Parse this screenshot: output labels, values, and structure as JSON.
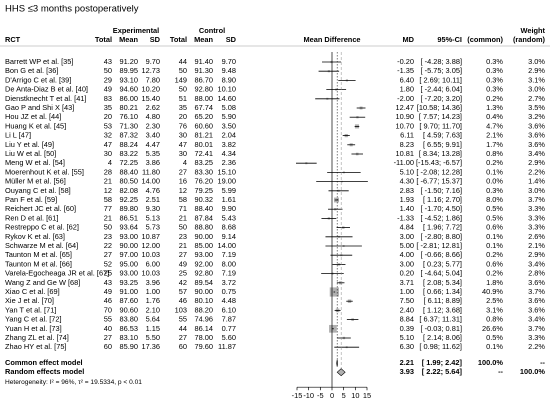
{
  "chart_data": {
    "type": "forest",
    "title": "HHS ≤3 months postoperatively",
    "columns": {
      "rct": "RCT",
      "experimental": "Experimental",
      "control": "Control",
      "sub": [
        "Total",
        "Mean",
        "SD"
      ],
      "mean_difference": "Mean Difference",
      "md": "MD",
      "ci": "95%-CI",
      "weight": "Weight",
      "weight_common": "(common)",
      "weight_random": "(random)"
    },
    "xlim": [
      -15,
      15
    ],
    "xticks": [
      -15,
      -10,
      -5,
      0,
      5,
      10,
      15
    ],
    "square_color": "#b0b0b0",
    "studies": [
      {
        "name": "Barrett WP et al. [35]",
        "exp": [
          "43",
          "91.20",
          "9.70"
        ],
        "ctrl": [
          "44",
          "91.40",
          "9.70"
        ],
        "md": -0.2,
        "md_label": "-0.20",
        "ci": [
          -4.28,
          3.88
        ],
        "ci_label": "[ -4.28; 3.88]",
        "weight_common": 0.3,
        "weight_common_label": "0.3%",
        "weight_random": 3.0,
        "weight_random_label": "3.0%"
      },
      {
        "name": "Bon G et al. [36]",
        "exp": [
          "50",
          "89.95",
          "12.73"
        ],
        "ctrl": [
          "50",
          "91.30",
          "9.48"
        ],
        "md": -1.35,
        "md_label": "-1.35",
        "ci": [
          -5.75,
          3.05
        ],
        "ci_label": "[ -5.75; 3.05]",
        "weight_common": 0.3,
        "weight_common_label": "0.3%",
        "weight_random": 2.9,
        "weight_random_label": "2.9%"
      },
      {
        "name": "D'Arrigo C et al. [39]",
        "exp": [
          "29",
          "93.10",
          "7.80"
        ],
        "ctrl": [
          "149",
          "86.70",
          "8.90"
        ],
        "md": 6.4,
        "md_label": "6.40",
        "ci": [
          2.69,
          10.11
        ],
        "ci_label": "[ 2.69; 10.11]",
        "weight_common": 0.3,
        "weight_common_label": "0.3%",
        "weight_random": 3.1,
        "weight_random_label": "3.1%"
      },
      {
        "name": "De Anta-Diaz B et al. [40]",
        "exp": [
          "49",
          "94.60",
          "10.20"
        ],
        "ctrl": [
          "50",
          "92.80",
          "10.10"
        ],
        "md": 1.8,
        "md_label": "1.80",
        "ci": [
          -2.44,
          6.04
        ],
        "ci_label": "[ -2.44; 6.04]",
        "weight_common": 0.3,
        "weight_common_label": "0.3%",
        "weight_random": 3.0,
        "weight_random_label": "3.0%"
      },
      {
        "name": "Dienstknecht T et al. [41]",
        "exp": [
          "83",
          "86.00",
          "15.40"
        ],
        "ctrl": [
          "51",
          "88.00",
          "14.60"
        ],
        "md": -2.0,
        "md_label": "-2.00",
        "ci": [
          -7.2,
          3.2
        ],
        "ci_label": "[ -7.20; 3.20]",
        "weight_common": 0.2,
        "weight_common_label": "0.2%",
        "weight_random": 2.7,
        "weight_random_label": "2.7%"
      },
      {
        "name": "Gao P and Shi X [43]",
        "exp": [
          "35",
          "80.21",
          "2.62"
        ],
        "ctrl": [
          "35",
          "67.74",
          "5.08"
        ],
        "md": 12.47,
        "md_label": "12.47",
        "ci": [
          10.58,
          14.36
        ],
        "ci_label": "[10.58; 14.36]",
        "weight_common": 1.3,
        "weight_common_label": "1.3%",
        "weight_random": 3.5,
        "weight_random_label": "3.5%"
      },
      {
        "name": "Hou JZ et al. [44]",
        "exp": [
          "20",
          "76.10",
          "4.80"
        ],
        "ctrl": [
          "20",
          "65.20",
          "5.90"
        ],
        "md": 10.9,
        "md_label": "10.90",
        "ci": [
          7.57,
          14.23
        ],
        "ci_label": "[ 7.57; 14.23]",
        "weight_common": 0.4,
        "weight_common_label": "0.4%",
        "weight_random": 3.2,
        "weight_random_label": "3.2%"
      },
      {
        "name": "Huang K et al. [45]",
        "exp": [
          "53",
          "71.30",
          "2.30"
        ],
        "ctrl": [
          "76",
          "60.60",
          "3.50"
        ],
        "md": 10.7,
        "md_label": "10.70",
        "ci": [
          9.7,
          11.7
        ],
        "ci_label": "[ 9.70; 11.70]",
        "weight_common": 4.7,
        "weight_common_label": "4.7%",
        "weight_random": 3.6,
        "weight_random_label": "3.6%"
      },
      {
        "name": "Li L [47]",
        "exp": [
          "32",
          "87.32",
          "3.40"
        ],
        "ctrl": [
          "30",
          "81.21",
          "2.04"
        ],
        "md": 6.11,
        "md_label": "6.11",
        "ci": [
          4.59,
          7.63
        ],
        "ci_label": "[ 4.59; 7.63]",
        "weight_common": 2.1,
        "weight_common_label": "2.1%",
        "weight_random": 3.6,
        "weight_random_label": "3.6%"
      },
      {
        "name": "Liu Y et al. [49]",
        "exp": [
          "47",
          "88.24",
          "4.47"
        ],
        "ctrl": [
          "47",
          "80.01",
          "3.82"
        ],
        "md": 8.23,
        "md_label": "8.23",
        "ci": [
          6.55,
          9.91
        ],
        "ci_label": "[ 6.55; 9.91]",
        "weight_common": 1.7,
        "weight_common_label": "1.7%",
        "weight_random": 3.6,
        "weight_random_label": "3.6%"
      },
      {
        "name": "Liu W et al. [50]",
        "exp": [
          "30",
          "83.22",
          "5.35"
        ],
        "ctrl": [
          "30",
          "72.41",
          "4.34"
        ],
        "md": 10.81,
        "md_label": "10.81",
        "ci": [
          8.34,
          13.28
        ],
        "ci_label": "[ 8.34; 13.28]",
        "weight_common": 0.8,
        "weight_common_label": "0.8%",
        "weight_random": 3.4,
        "weight_random_label": "3.4%"
      },
      {
        "name": "Meng W et al. [54]",
        "exp": [
          "4",
          "72.25",
          "3.86"
        ],
        "ctrl": [
          "4",
          "83.25",
          "2.36"
        ],
        "md": -11.0,
        "md_label": "-11.00",
        "ci": [
          -15.43,
          -6.57
        ],
        "ci_label": "[-15.43; -6.57]",
        "weight_common": 0.2,
        "weight_common_label": "0.2%",
        "weight_random": 2.9,
        "weight_random_label": "2.9%"
      },
      {
        "name": "Moerenhout K et al. [55]",
        "exp": [
          "28",
          "88.40",
          "11.80"
        ],
        "ctrl": [
          "27",
          "83.30",
          "15.10"
        ],
        "md": 5.1,
        "md_label": "5.10",
        "ci": [
          -2.08,
          12.28
        ],
        "ci_label": "[ -2.08; 12.28]",
        "weight_common": 0.1,
        "weight_common_label": "0.1%",
        "weight_random": 2.2,
        "weight_random_label": "2.2%"
      },
      {
        "name": "Müller M et al. [56]",
        "exp": [
          "21",
          "80.50",
          "14.00"
        ],
        "ctrl": [
          "16",
          "76.20",
          "19.00"
        ],
        "md": 4.3,
        "md_label": "4.30",
        "ci": [
          -6.77,
          15.37
        ],
        "ci_label": "[ -6.77; 15.37]",
        "weight_common": 0.0,
        "weight_common_label": "0.0%",
        "weight_random": 1.4,
        "weight_random_label": "1.4%"
      },
      {
        "name": "Ouyang C et al. [58]",
        "exp": [
          "12",
          "82.08",
          "4.76"
        ],
        "ctrl": [
          "12",
          "79.25",
          "5.99"
        ],
        "md": 2.83,
        "md_label": "2.83",
        "ci": [
          -1.5,
          7.16
        ],
        "ci_label": "[ -1.50; 7.16]",
        "weight_common": 0.3,
        "weight_common_label": "0.3%",
        "weight_random": 3.0,
        "weight_random_label": "3.0%"
      },
      {
        "name": "Pan F et al. [59]",
        "exp": [
          "58",
          "92.25",
          "2.51"
        ],
        "ctrl": [
          "58",
          "90.32",
          "1.61"
        ],
        "md": 1.93,
        "md_label": "1.93",
        "ci": [
          1.16,
          2.7
        ],
        "ci_label": "[ 1.16; 2.70]",
        "weight_common": 8.0,
        "weight_common_label": "8.0%",
        "weight_random": 3.7,
        "weight_random_label": "3.7%"
      },
      {
        "name": "Reichert JC et al. [60]",
        "exp": [
          "77",
          "89.80",
          "9.30"
        ],
        "ctrl": [
          "71",
          "88.40",
          "9.90"
        ],
        "md": 1.4,
        "md_label": "1.40",
        "ci": [
          -1.7,
          4.5
        ],
        "ci_label": "[ -1.70; 4.50]",
        "weight_common": 0.5,
        "weight_common_label": "0.5%",
        "weight_random": 3.3,
        "weight_random_label": "3.3%"
      },
      {
        "name": "Ren D et al. [61]",
        "exp": [
          "21",
          "86.51",
          "5.13"
        ],
        "ctrl": [
          "21",
          "87.84",
          "5.43"
        ],
        "md": -1.33,
        "md_label": "-1.33",
        "ci": [
          -4.52,
          1.86
        ],
        "ci_label": "[ -4.52; 1.86]",
        "weight_common": 0.5,
        "weight_common_label": "0.5%",
        "weight_random": 3.3,
        "weight_random_label": "3.3%"
      },
      {
        "name": "Restreppo C et al. [62]",
        "exp": [
          "50",
          "93.64",
          "5.73"
        ],
        "ctrl": [
          "50",
          "88.80",
          "8.68"
        ],
        "md": 4.84,
        "md_label": "4.84",
        "ci": [
          1.96,
          7.72
        ],
        "ci_label": "[ 1.96; 7.72]",
        "weight_common": 0.6,
        "weight_common_label": "0.6%",
        "weight_random": 3.3,
        "weight_random_label": "3.3%"
      },
      {
        "name": "Rykov K et al. [63]",
        "exp": [
          "23",
          "93.00",
          "10.87"
        ],
        "ctrl": [
          "23",
          "90.00",
          "9.14"
        ],
        "md": 3.0,
        "md_label": "3.00",
        "ci": [
          -2.8,
          8.8
        ],
        "ci_label": "[ -2.80; 8.80]",
        "weight_common": 0.1,
        "weight_common_label": "0.1%",
        "weight_random": 2.6,
        "weight_random_label": "2.6%"
      },
      {
        "name": "Schwarze M et al. [64]",
        "exp": [
          "22",
          "90.00",
          "12.00"
        ],
        "ctrl": [
          "21",
          "85.00",
          "14.00"
        ],
        "md": 5.0,
        "md_label": "5.00",
        "ci": [
          -2.81,
          12.81
        ],
        "ci_label": "[ -2.81; 12.81]",
        "weight_common": 0.1,
        "weight_common_label": "0.1%",
        "weight_random": 2.1,
        "weight_random_label": "2.1%"
      },
      {
        "name": "Taunton M et al. [65]",
        "exp": [
          "27",
          "97.00",
          "10.03"
        ],
        "ctrl": [
          "27",
          "93.00",
          "7.19"
        ],
        "md": 4.0,
        "md_label": "4.00",
        "ci": [
          -0.66,
          8.66
        ],
        "ci_label": "[ -0.66; 8.66]",
        "weight_common": 0.2,
        "weight_common_label": "0.2%",
        "weight_random": 2.9,
        "weight_random_label": "2.9%"
      },
      {
        "name": "Taunton M et al. [66]",
        "exp": [
          "52",
          "95.00",
          "6.00"
        ],
        "ctrl": [
          "49",
          "92.00",
          "8.00"
        ],
        "md": 3.0,
        "md_label": "3.00",
        "ci": [
          0.23,
          5.77
        ],
        "ci_label": "[ 0.23; 5.77]",
        "weight_common": 0.6,
        "weight_common_label": "0.6%",
        "weight_random": 3.4,
        "weight_random_label": "3.4%"
      },
      {
        "name": "Varela-Egocheaga JR et al. [67]",
        "exp": [
          "25",
          "93.00",
          "10.03"
        ],
        "ctrl": [
          "25",
          "92.80",
          "7.19"
        ],
        "md": 0.2,
        "md_label": "0.20",
        "ci": [
          -4.64,
          5.04
        ],
        "ci_label": "[ -4.64; 5.04]",
        "weight_common": 0.2,
        "weight_common_label": "0.2%",
        "weight_random": 2.8,
        "weight_random_label": "2.8%"
      },
      {
        "name": "Wang Z and Ge W [68]",
        "exp": [
          "43",
          "93.25",
          "3.96"
        ],
        "ctrl": [
          "42",
          "89.54",
          "3.72"
        ],
        "md": 3.71,
        "md_label": "3.71",
        "ci": [
          2.08,
          5.34
        ],
        "ci_label": "[ 2.08; 5.34]",
        "weight_common": 1.8,
        "weight_common_label": "1.8%",
        "weight_random": 3.6,
        "weight_random_label": "3.6%"
      },
      {
        "name": "Xiao C et al. [69]",
        "exp": [
          "49",
          "91.00",
          "1.00"
        ],
        "ctrl": [
          "57",
          "90.00",
          "0.75"
        ],
        "md": 1.0,
        "md_label": "1.00",
        "ci": [
          0.66,
          1.34
        ],
        "ci_label": "[ 0.66; 1.34]",
        "weight_common": 40.9,
        "weight_common_label": "40.9%",
        "weight_random": 3.7,
        "weight_random_label": "3.7%"
      },
      {
        "name": "Xie J et al. [70]",
        "exp": [
          "46",
          "87.60",
          "1.76"
        ],
        "ctrl": [
          "46",
          "80.10",
          "4.48"
        ],
        "md": 7.5,
        "md_label": "7.50",
        "ci": [
          6.11,
          8.89
        ],
        "ci_label": "[ 6.11; 8.89]",
        "weight_common": 2.5,
        "weight_common_label": "2.5%",
        "weight_random": 3.6,
        "weight_random_label": "3.6%"
      },
      {
        "name": "Yan T et al. [71]",
        "exp": [
          "70",
          "90.60",
          "2.10"
        ],
        "ctrl": [
          "103",
          "88.20",
          "6.10"
        ],
        "md": 2.4,
        "md_label": "2.40",
        "ci": [
          1.12,
          3.68
        ],
        "ci_label": "[ 1.12; 3.68]",
        "weight_common": 3.1,
        "weight_common_label": "3.1%",
        "weight_random": 3.6,
        "weight_random_label": "3.6%"
      },
      {
        "name": "Yang C et al. [72]",
        "exp": [
          "55",
          "83.80",
          "5.64"
        ],
        "ctrl": [
          "55",
          "74.96",
          "7.87"
        ],
        "md": 8.84,
        "md_label": "8.84",
        "ci": [
          6.37,
          11.31
        ],
        "ci_label": "[ 6.37; 11.31]",
        "weight_common": 0.8,
        "weight_common_label": "0.8%",
        "weight_random": 3.4,
        "weight_random_label": "3.4%"
      },
      {
        "name": "Yuan H et al. [73]",
        "exp": [
          "40",
          "86.53",
          "1.15"
        ],
        "ctrl": [
          "44",
          "86.14",
          "0.77"
        ],
        "md": 0.39,
        "md_label": "0.39",
        "ci": [
          -0.03,
          0.81
        ],
        "ci_label": "[ -0.03; 0.81]",
        "weight_common": 26.6,
        "weight_common_label": "26.6%",
        "weight_random": 3.7,
        "weight_random_label": "3.7%"
      },
      {
        "name": "Zhang ZL et al. [74]",
        "exp": [
          "27",
          "83.10",
          "5.50"
        ],
        "ctrl": [
          "27",
          "78.00",
          "5.60"
        ],
        "md": 5.1,
        "md_label": "5.10",
        "ci": [
          2.14,
          8.06
        ],
        "ci_label": "[ 2.14; 8.06]",
        "weight_common": 0.5,
        "weight_common_label": "0.5%",
        "weight_random": 3.3,
        "weight_random_label": "3.3%"
      },
      {
        "name": "Zhao HY et al. [75]",
        "exp": [
          "60",
          "85.90",
          "17.36"
        ],
        "ctrl": [
          "60",
          "79.60",
          "11.87"
        ],
        "md": 6.3,
        "md_label": "6.30",
        "ci": [
          0.98,
          11.62
        ],
        "ci_label": "[ 0.98; 11.62]",
        "weight_common": 0.1,
        "weight_common_label": "0.1%",
        "weight_random": 2.2,
        "weight_random_label": "2.2%"
      }
    ],
    "summaries": [
      {
        "name": "Common effect model",
        "md": 2.21,
        "md_label": "2.21",
        "ci": [
          1.99,
          2.42
        ],
        "ci_label": "[ 1.99; 2.42]",
        "weight_common_label": "100.0%",
        "weight_random_label": "--"
      },
      {
        "name": "Random effects model",
        "md": 3.93,
        "md_label": "3.93",
        "ci": [
          2.22,
          5.64
        ],
        "ci_label": "[ 2.22; 5.64]",
        "weight_common_label": "--",
        "weight_random_label": "100.0%"
      }
    ],
    "heterogeneity": "Heterogeneity: I² = 96%, τ² = 19.5334, p < 0.01"
  }
}
